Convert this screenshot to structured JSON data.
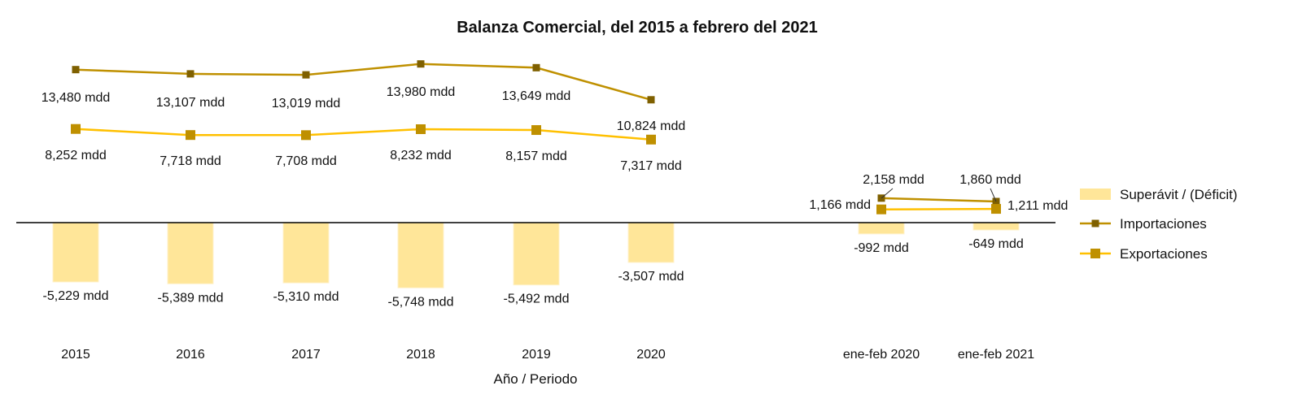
{
  "chart_data": {
    "type": "line",
    "title": "Balanza Comercial, del 2015 a febrero del 2021",
    "xlabel": "Año / Periodo",
    "ylabel": "",
    "categories": [
      "2015",
      "2016",
      "2017",
      "2018",
      "2019",
      "2020",
      "ene-feb 2020",
      "ene-feb 2021"
    ],
    "unit": "mdd",
    "series": [
      {
        "name": "Superávit / (Déficit)",
        "kind": "bar",
        "color": "#ffe699",
        "values": [
          -5229,
          -5389,
          -5310,
          -5748,
          -5492,
          -3507,
          -992,
          -649
        ],
        "labels": [
          "-5,229 mdd",
          "-5,389 mdd",
          "-5,310 mdd",
          "-5,748 mdd",
          "-5,492 mdd",
          "-3,507 mdd",
          "-992 mdd",
          "-649 mdd"
        ]
      },
      {
        "name": "Importaciones",
        "kind": "line",
        "color": "#bf9000",
        "marker_color": "#7f6000",
        "values": [
          13480,
          13107,
          13019,
          13980,
          13649,
          10824,
          2158,
          1860
        ],
        "labels": [
          "13,480 mdd",
          "13,107 mdd",
          "13,019 mdd",
          "13,980 mdd",
          "13,649 mdd",
          "10,824 mdd",
          "2,158 mdd",
          "1,860 mdd"
        ]
      },
      {
        "name": "Exportaciones",
        "kind": "line",
        "color": "#ffc000",
        "marker_color": "#bf9000",
        "values": [
          8252,
          7718,
          7708,
          8232,
          8157,
          7317,
          1166,
          1211
        ],
        "labels": [
          "8,252 mdd",
          "7,718 mdd",
          "7,708 mdd",
          "8,232 mdd",
          "8,157 mdd",
          "7,317 mdd",
          "1,166 mdd",
          "1,211 mdd"
        ]
      }
    ],
    "line_groups": [
      [
        0,
        5
      ],
      [
        6,
        7
      ]
    ],
    "legend_position": "right",
    "grid": false
  }
}
